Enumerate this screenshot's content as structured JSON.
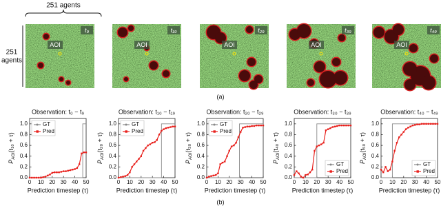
{
  "top_label": "251 agents",
  "left_label": [
    "251",
    "agents"
  ],
  "panels": [
    {
      "aoi": "AOI",
      "time": "t₉"
    },
    {
      "aoi": "AOI",
      "time": "t₁₉"
    },
    {
      "aoi": "AOI",
      "time": "t₂₉"
    },
    {
      "aoi": "AOI",
      "time": "t₃₉"
    },
    {
      "aoi": "AOI",
      "time": "t₄₉"
    }
  ],
  "caption_a": "(a)",
  "caption_b": "(b)",
  "chart_data": [
    {
      "type": "line",
      "title": "Observation: t₀ − t₉",
      "x_label": "Prediction timestep (τ)",
      "y_label": {
        "symbol": "P",
        "subscript": "AOI",
        "argument": "(t₁₀ + τ)"
      },
      "xlim": [
        0,
        50
      ],
      "xticks": [
        0,
        10,
        20,
        30,
        40,
        50
      ],
      "ylim": [
        0,
        1.1
      ],
      "yticks": [
        {
          "value": 0,
          "label": "0.0"
        },
        {
          "value": 0.2,
          "label": "0.2"
        },
        {
          "value": 0.4,
          "label": "0.4"
        },
        {
          "value": 0.6,
          "label": "0.6"
        },
        {
          "value": 0.8,
          "label": "0.8"
        },
        {
          "value": 1,
          "label": "1.0"
        }
      ],
      "legend": "upper left",
      "series": [
        {
          "name": "GT",
          "color": "#888888",
          "x": [
            0,
            47,
            47,
            50
          ],
          "values": [
            0,
            0,
            1,
            1
          ]
        },
        {
          "name": "Pred",
          "color": "#e8201c",
          "x": [
            0,
            2,
            4,
            6,
            8,
            10,
            12,
            14,
            16,
            18,
            20,
            22,
            24,
            26,
            28,
            30,
            32,
            34,
            36,
            38,
            40,
            42,
            44,
            46,
            48,
            50
          ],
          "values": [
            0,
            0,
            0,
            0,
            0,
            0,
            0.01,
            0.02,
            0.04,
            0.06,
            0.09,
            0.1,
            0.1,
            0.1,
            0.11,
            0.12,
            0.12,
            0.13,
            0.14,
            0.15,
            0.16,
            0.18,
            0.25,
            0.45,
            0.47,
            0.47
          ]
        }
      ]
    },
    {
      "type": "line",
      "title": "Observation: t₁₀ − t₁₉",
      "x_label": "Prediction timestep (τ)",
      "y_label": {
        "symbol": "P",
        "subscript": "AOI",
        "argument": "(t₂₀ + τ)"
      },
      "xlim": [
        0,
        50
      ],
      "xticks": [
        0,
        10,
        20,
        30,
        40,
        50
      ],
      "ylim": [
        0,
        1.1
      ],
      "yticks": [
        {
          "value": 0,
          "label": "0.0"
        },
        {
          "value": 0.2,
          "label": "0.2"
        },
        {
          "value": 0.4,
          "label": "0.4"
        },
        {
          "value": 0.6,
          "label": "0.6"
        },
        {
          "value": 0.8,
          "label": "0.8"
        },
        {
          "value": 1,
          "label": "1.0"
        }
      ],
      "legend": "upper left",
      "series": [
        {
          "name": "GT",
          "color": "#888888",
          "x": [
            0,
            38,
            38,
            50
          ],
          "values": [
            0,
            0,
            1,
            1
          ]
        },
        {
          "name": "Pred",
          "color": "#e8201c",
          "x": [
            0,
            2,
            4,
            6,
            8,
            10,
            12,
            14,
            16,
            18,
            20,
            22,
            24,
            26,
            28,
            30,
            32,
            34,
            36,
            38,
            40,
            42,
            44,
            46,
            48,
            50
          ],
          "values": [
            0,
            0.01,
            0.02,
            0.03,
            0.05,
            0.1,
            0.2,
            0.25,
            0.3,
            0.35,
            0.4,
            0.5,
            0.55,
            0.6,
            0.62,
            0.65,
            0.66,
            0.7,
            0.8,
            0.87,
            0.9,
            0.92,
            0.93,
            0.94,
            0.95,
            0.95
          ]
        }
      ]
    },
    {
      "type": "line",
      "title": "Observation: t₂₀ − t₂₉",
      "x_label": "Prediction timestep (τ)",
      "y_label": {
        "symbol": "P",
        "subscript": "AOI",
        "argument": "(t₃₀ + τ)"
      },
      "xlim": [
        0,
        50
      ],
      "xticks": [
        0,
        10,
        20,
        30,
        40,
        50
      ],
      "ylim": [
        0,
        1.1
      ],
      "yticks": [
        {
          "value": 0,
          "label": "0.0"
        },
        {
          "value": 0.2,
          "label": "0.2"
        },
        {
          "value": 0.4,
          "label": "0.4"
        },
        {
          "value": 0.6,
          "label": "0.6"
        },
        {
          "value": 0.8,
          "label": "0.8"
        },
        {
          "value": 1,
          "label": "1.0"
        }
      ],
      "legend": "upper left",
      "series": [
        {
          "name": "GT",
          "color": "#888888",
          "x": [
            0,
            29,
            29,
            50
          ],
          "values": [
            0,
            0,
            1,
            1
          ]
        },
        {
          "name": "Pred",
          "color": "#e8201c",
          "x": [
            0,
            2,
            4,
            6,
            8,
            10,
            12,
            14,
            16,
            18,
            20,
            22,
            24,
            26,
            28,
            30,
            32,
            34,
            36,
            38,
            40,
            42,
            44,
            46,
            48,
            50
          ],
          "values": [
            0,
            0.02,
            0.03,
            0.04,
            0.05,
            0.08,
            0.25,
            0.28,
            0.3,
            0.4,
            0.5,
            0.58,
            0.6,
            0.65,
            0.75,
            0.85,
            0.93,
            0.94,
            0.95,
            0.95,
            0.96,
            0.96,
            0.97,
            0.97,
            0.97,
            0.97
          ]
        }
      ]
    },
    {
      "type": "line",
      "title": "Observation: t₃₀ − t₃₉",
      "x_label": "Prediction timestep (τ)",
      "y_label": {
        "symbol": "P",
        "subscript": "AOI",
        "argument": "(t₄₀ + τ)"
      },
      "xlim": [
        0,
        50
      ],
      "xticks": [
        0,
        10,
        20,
        30,
        40,
        50
      ],
      "ylim": [
        0,
        1.1
      ],
      "yticks": [
        {
          "value": 0,
          "label": "0.0"
        },
        {
          "value": 0.2,
          "label": "0.2"
        },
        {
          "value": 0.4,
          "label": "0.4"
        },
        {
          "value": 0.6,
          "label": "0.6"
        },
        {
          "value": 0.8,
          "label": "0.8"
        },
        {
          "value": 1,
          "label": "1.0"
        }
      ],
      "legend": "lower right",
      "series": [
        {
          "name": "GT",
          "color": "#888888",
          "x": [
            0,
            20,
            20,
            50
          ],
          "values": [
            0,
            0,
            1,
            1
          ]
        },
        {
          "name": "Pred",
          "color": "#e8201c",
          "x": [
            0,
            2,
            4,
            6,
            8,
            10,
            12,
            14,
            16,
            18,
            20,
            22,
            24,
            26,
            28,
            30,
            32,
            34,
            36,
            38,
            40,
            42,
            44,
            46,
            48,
            50
          ],
          "values": [
            0.05,
            0.12,
            0.08,
            0.02,
            0,
            0.05,
            0.06,
            0.1,
            0.15,
            0.5,
            0.58,
            0.6,
            0.62,
            0.65,
            0.88,
            0.9,
            0.92,
            0.94,
            0.95,
            0.96,
            0.97,
            0.97,
            0.97,
            0.97,
            0.97,
            0.97
          ]
        }
      ]
    },
    {
      "type": "line",
      "title": "Observation: t₄₀ − t₄₉",
      "x_label": "Prediction timestep (τ)",
      "y_label": {
        "symbol": "P",
        "subscript": "AOI",
        "argument": "(t₅₀ + τ)"
      },
      "xlim": [
        0,
        50
      ],
      "xticks": [
        0,
        10,
        20,
        30,
        40,
        50
      ],
      "ylim": [
        0,
        1.1
      ],
      "yticks": [
        {
          "value": 0,
          "label": "0.0"
        },
        {
          "value": 0.2,
          "label": "0.2"
        },
        {
          "value": 0.4,
          "label": "0.4"
        },
        {
          "value": 0.6,
          "label": "0.6"
        },
        {
          "value": 0.8,
          "label": "0.8"
        },
        {
          "value": 1,
          "label": "1.0"
        }
      ],
      "legend": "lower right",
      "series": [
        {
          "name": "GT",
          "color": "#888888",
          "x": [
            0,
            10,
            10,
            50
          ],
          "values": [
            0,
            0,
            1,
            1
          ]
        },
        {
          "name": "Pred",
          "color": "#e8201c",
          "x": [
            0,
            2,
            4,
            6,
            8,
            10,
            12,
            14,
            16,
            18,
            20,
            22,
            24,
            26,
            28,
            30,
            32,
            34,
            36,
            38,
            40,
            42,
            44,
            46,
            48,
            50
          ],
          "values": [
            0.15,
            0.1,
            0.2,
            0.12,
            0.15,
            0.3,
            0.5,
            0.65,
            0.75,
            0.8,
            0.85,
            0.9,
            0.93,
            0.95,
            0.97,
            0.98,
            0.99,
            0.99,
            1,
            1,
            1,
            1,
            1,
            1,
            1,
            1
          ]
        }
      ]
    }
  ]
}
